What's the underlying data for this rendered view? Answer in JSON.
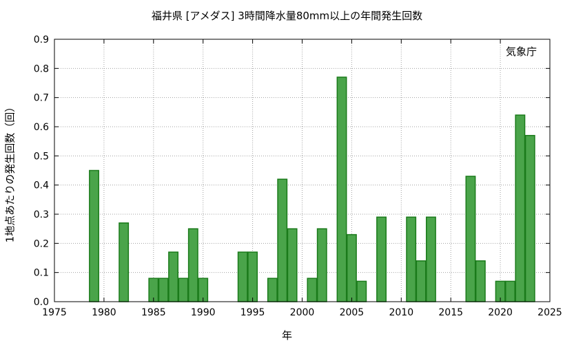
{
  "chart_data": {
    "type": "bar",
    "title": "福井県 [アメダス] 3時間降水量80mm以上の年間発生回数",
    "xlabel": "年",
    "ylabel": "1地点あたりの発生回数（回）",
    "source": "気象庁",
    "xlim": [
      1975,
      2025
    ],
    "ylim": [
      0,
      0.9
    ],
    "xticks": [
      1975,
      1980,
      1985,
      1990,
      1995,
      2000,
      2005,
      2010,
      2015,
      2020,
      2025
    ],
    "yticks": [
      0.0,
      0.1,
      0.2,
      0.3,
      0.4,
      0.5,
      0.6,
      0.7,
      0.8,
      0.9
    ],
    "grid": true,
    "bar_color": "#4aa44a",
    "bar_edge_color": "#1a7a1a",
    "x": [
      1979,
      1982,
      1985,
      1986,
      1987,
      1988,
      1989,
      1990,
      1994,
      1995,
      1997,
      1998,
      1999,
      2001,
      2002,
      2004,
      2005,
      2006,
      2008,
      2011,
      2012,
      2013,
      2017,
      2018,
      2020,
      2021,
      2022,
      2023
    ],
    "values": [
      0.45,
      0.27,
      0.08,
      0.08,
      0.17,
      0.08,
      0.25,
      0.08,
      0.17,
      0.17,
      0.08,
      0.42,
      0.25,
      0.08,
      0.25,
      0.77,
      0.23,
      0.07,
      0.29,
      0.29,
      0.14,
      0.29,
      0.43,
      0.14,
      0.07,
      0.07,
      0.64,
      0.57
    ]
  }
}
